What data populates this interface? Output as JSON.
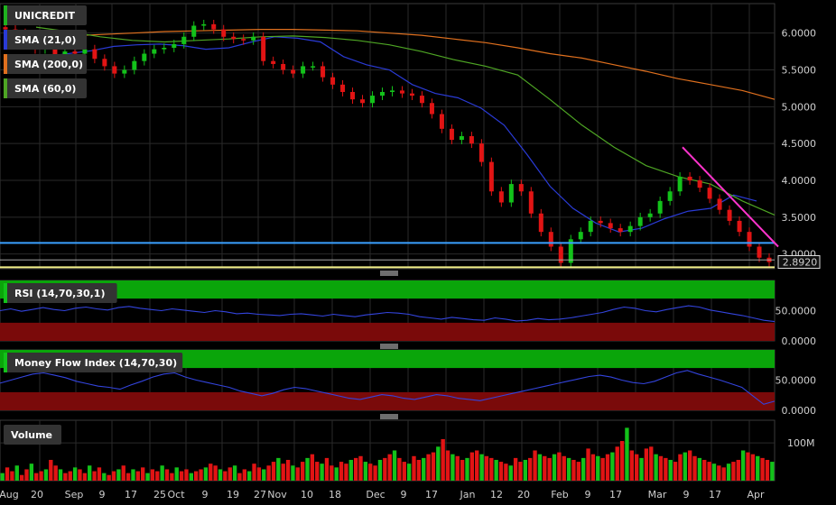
{
  "chart_data": {
    "type": "candlestick",
    "instrument": "UNICREDIT",
    "last_price": "2.8920",
    "price_axis": {
      "ylim": [
        2.8,
        6.4
      ],
      "ticks": [
        "6.0000",
        "5.5000",
        "5.0000",
        "4.5000",
        "4.0000",
        "3.5000",
        "3.0000"
      ]
    },
    "x_tick_labels": [
      "Aug",
      "20",
      "Sep",
      "9",
      "17",
      "25",
      "Oct",
      "9",
      "19",
      "27",
      "Nov",
      "10",
      "18",
      "Dec",
      "9",
      "17",
      "Jan",
      "12",
      "20",
      "Feb",
      "9",
      "17",
      "Mar",
      "9",
      "17",
      "Apr"
    ],
    "overlays": [
      {
        "name": "SMA (21,0)",
        "color": "#2a3bd6",
        "values": [
          5.68,
          5.72,
          5.76,
          5.82,
          5.84,
          5.85,
          5.83,
          5.78,
          5.8,
          5.88,
          5.95,
          5.93,
          5.88,
          5.68,
          5.57,
          5.5,
          5.3,
          5.18,
          5.12,
          4.98,
          4.75,
          4.35,
          3.92,
          3.62,
          3.42,
          3.3,
          3.35,
          3.48,
          3.58,
          3.62,
          3.8,
          3.72
        ]
      },
      {
        "name": "SMA (200,0)",
        "color": "#e0701e",
        "values": [
          5.95,
          5.96,
          5.98,
          6.0,
          6.02,
          6.03,
          6.04,
          6.05,
          6.05,
          6.04,
          6.03,
          6.0,
          5.97,
          5.92,
          5.87,
          5.8,
          5.72,
          5.66,
          5.57,
          5.48,
          5.38,
          5.3,
          5.22,
          5.1
        ]
      },
      {
        "name": "SMA (60,0)",
        "color": "#4ea524",
        "values": [
          6.08,
          6.02,
          5.95,
          5.9,
          5.88,
          5.9,
          5.92,
          5.95,
          5.96,
          5.94,
          5.9,
          5.84,
          5.75,
          5.64,
          5.55,
          5.43,
          5.1,
          4.75,
          4.45,
          4.2,
          4.05,
          3.95,
          3.72,
          3.53
        ]
      }
    ],
    "horizontal_lines": [
      {
        "label": "support",
        "value": 3.15,
        "color": "#3aa0ff"
      },
      {
        "label": "low",
        "value": 2.82,
        "color": "#f3f08a"
      }
    ],
    "trendline": {
      "color": "#ff33cc",
      "from": 4.45,
      "to": 3.1
    },
    "closes": [
      6.05,
      6.0,
      5.9,
      5.78,
      5.85,
      5.7,
      5.75,
      5.72,
      5.78,
      5.65,
      5.55,
      5.45,
      5.5,
      5.62,
      5.72,
      5.78,
      5.8,
      5.85,
      5.95,
      6.1,
      6.12,
      6.05,
      5.95,
      5.92,
      5.9,
      5.95,
      5.62,
      5.58,
      5.5,
      5.45,
      5.55,
      5.55,
      5.4,
      5.3,
      5.2,
      5.1,
      5.05,
      5.15,
      5.2,
      5.22,
      5.18,
      5.15,
      5.05,
      4.9,
      4.7,
      4.55,
      4.6,
      4.5,
      4.25,
      3.85,
      3.7,
      3.95,
      3.85,
      3.55,
      3.3,
      3.1,
      2.88,
      3.2,
      3.3,
      3.45,
      3.42,
      3.35,
      3.3,
      3.38,
      3.5,
      3.55,
      3.72,
      3.85,
      4.05,
      4.0,
      3.9,
      3.75,
      3.6,
      3.45,
      3.3,
      3.1,
      2.95,
      2.89
    ]
  },
  "indicators": {
    "rsi": {
      "name": "RSI (14,70,30,1)",
      "ticks": [
        "50.0000",
        "0.0000"
      ],
      "upper_band": 70,
      "lower_band": 30,
      "values": [
        50,
        53,
        49,
        52,
        55,
        52,
        50,
        54,
        56,
        53,
        51,
        55,
        57,
        54,
        52,
        50,
        53,
        51,
        49,
        47,
        50,
        48,
        45,
        46,
        44,
        43,
        42,
        44,
        45,
        43,
        41,
        44,
        42,
        40,
        43,
        45,
        47,
        46,
        44,
        40,
        38,
        36,
        39,
        37,
        35,
        34,
        38,
        36,
        33,
        34,
        37,
        35,
        36,
        38,
        41,
        44,
        47,
        52,
        56,
        54,
        50,
        48,
        52,
        55,
        58,
        56,
        51,
        48,
        45,
        42,
        38,
        34,
        32
      ]
    },
    "mfi": {
      "name": "Money Flow Index (14,70,30)",
      "ticks": [
        "50.0000",
        "0.0000"
      ],
      "upper_band": 70,
      "lower_band": 30,
      "values": [
        45,
        50,
        55,
        60,
        62,
        58,
        54,
        48,
        44,
        40,
        38,
        35,
        42,
        48,
        55,
        60,
        62,
        55,
        50,
        46,
        42,
        38,
        32,
        28,
        24,
        28,
        34,
        38,
        36,
        32,
        28,
        24,
        20,
        18,
        22,
        26,
        24,
        20,
        18,
        22,
        26,
        24,
        20,
        18,
        16,
        20,
        24,
        28,
        32,
        36,
        40,
        44,
        48,
        52,
        56,
        58,
        55,
        50,
        46,
        44,
        48,
        55,
        62,
        66,
        60,
        55,
        50,
        44,
        38,
        24,
        10,
        15
      ]
    },
    "volume": {
      "name": "Volume",
      "tick": "100M",
      "max": 160,
      "values": [
        20,
        35,
        25,
        40,
        15,
        30,
        45,
        20,
        25,
        30,
        55,
        40,
        30,
        20,
        25,
        35,
        30,
        20,
        40,
        25,
        35,
        20,
        15,
        25,
        30,
        40,
        20,
        30,
        25,
        35,
        20,
        30,
        25,
        40,
        30,
        20,
        35,
        25,
        30,
        20,
        25,
        30,
        35,
        45,
        40,
        30,
        25,
        35,
        40,
        20,
        30,
        25,
        45,
        35,
        30,
        40,
        50,
        60,
        45,
        55,
        40,
        35,
        50,
        60,
        70,
        50,
        45,
        60,
        40,
        35,
        50,
        45,
        55,
        60,
        65,
        50,
        45,
        40,
        55,
        60,
        70,
        80,
        60,
        50,
        45,
        65,
        55,
        60,
        70,
        75,
        90,
        110,
        80,
        70,
        65,
        55,
        60,
        75,
        80,
        70,
        65,
        60,
        55,
        50,
        45,
        40,
        60,
        50,
        55,
        60,
        80,
        70,
        65,
        60,
        70,
        75,
        65,
        60,
        55,
        50,
        60,
        85,
        70,
        65,
        60,
        70,
        75,
        90,
        105,
        140,
        80,
        70,
        60,
        85,
        90,
        70,
        65,
        60,
        55,
        50,
        70,
        75,
        80,
        65,
        60,
        55,
        50,
        45,
        40,
        35,
        45,
        50,
        55,
        80,
        75,
        70,
        65,
        60,
        55,
        50
      ]
    }
  },
  "legend_tags": {
    "unicredit": "UNICREDIT",
    "sma21": "SMA (21,0)",
    "sma200": "SMA (200,0)",
    "sma60": "SMA (60,0)"
  },
  "colors": {
    "up": "#13c21a",
    "down": "#e11414",
    "band_green": "#0aa50a",
    "band_red": "#7a0a0a",
    "line_blue": "#3344dd",
    "grid": "#2a2a2a"
  },
  "icons": {
    "splitter": "drag-handle-icon"
  }
}
